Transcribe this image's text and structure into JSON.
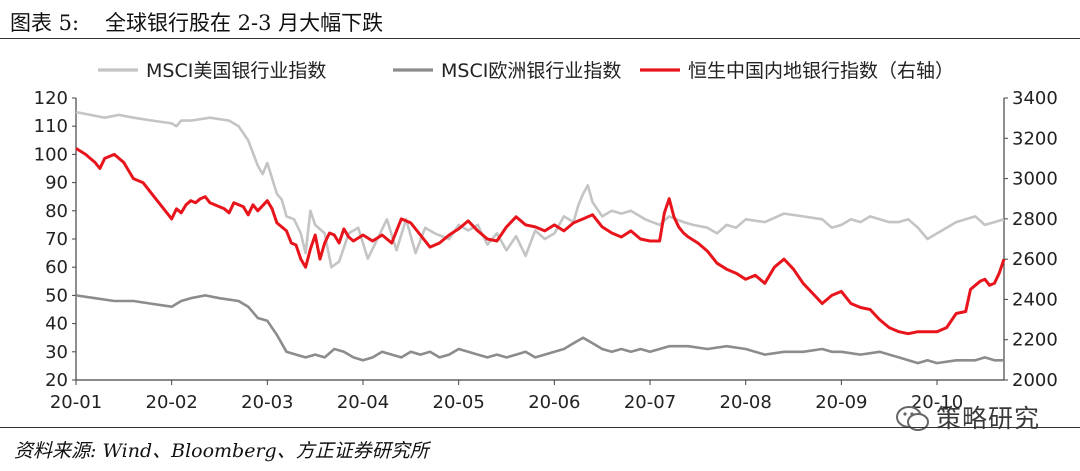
{
  "header": {
    "figure_label": "图表 5:",
    "title": "全球银行股在 2-3 月大幅下跌"
  },
  "source_note": "资料来源: Wind、Bloomberg、方正证券研究所",
  "watermark": "策略研究",
  "chart_data": {
    "type": "line",
    "x_tick_labels": [
      "20-01",
      "20-02",
      "20-03",
      "20-04",
      "20-05",
      "20-06",
      "20-07",
      "20-08",
      "20-09",
      "20-10"
    ],
    "x_range": [
      0,
      9.7
    ],
    "ylim_left": [
      20,
      120
    ],
    "yticks_left": [
      20,
      30,
      40,
      50,
      60,
      70,
      80,
      90,
      100,
      110,
      120
    ],
    "ylim_right": [
      2000,
      3400
    ],
    "yticks_right": [
      2000,
      2200,
      2400,
      2600,
      2800,
      3000,
      3200,
      3400
    ],
    "grid": false,
    "legend_position": "top",
    "series": [
      {
        "name": "MSCI美国银行业指数",
        "axis": "left",
        "color": "#c4c4c4",
        "x": [
          0,
          0.15,
          0.3,
          0.45,
          0.6,
          0.8,
          1.0,
          1.05,
          1.1,
          1.2,
          1.4,
          1.6,
          1.7,
          1.8,
          1.9,
          1.95,
          2.0,
          2.1,
          2.15,
          2.2,
          2.28,
          2.35,
          2.4,
          2.45,
          2.5,
          2.6,
          2.67,
          2.75,
          2.85,
          2.95,
          3.05,
          3.15,
          3.25,
          3.35,
          3.45,
          3.55,
          3.65,
          3.75,
          3.9,
          4.0,
          4.1,
          4.2,
          4.3,
          4.4,
          4.5,
          4.6,
          4.7,
          4.8,
          4.9,
          5.0,
          5.1,
          5.2,
          5.25,
          5.3,
          5.35,
          5.4,
          5.5,
          5.6,
          5.7,
          5.8,
          5.95,
          6.1,
          6.2,
          6.35,
          6.45,
          6.6,
          6.7,
          6.8,
          6.9,
          7.0,
          7.2,
          7.4,
          7.6,
          7.8,
          7.9,
          8.0,
          8.1,
          8.2,
          8.3,
          8.4,
          8.5,
          8.6,
          8.7,
          8.8,
          8.9,
          9.0,
          9.1,
          9.2,
          9.3,
          9.4,
          9.5,
          9.6,
          9.7
        ],
        "y": [
          115,
          114,
          113,
          114,
          113,
          112,
          111,
          110,
          112,
          112,
          113,
          112,
          110,
          105,
          96,
          93,
          97,
          86,
          84,
          78,
          77,
          72,
          65,
          80,
          75,
          72,
          60,
          62,
          72,
          74,
          63,
          70,
          77,
          66,
          77,
          65,
          74,
          72,
          70,
          75,
          73,
          75,
          68,
          72,
          66,
          71,
          64,
          73,
          70,
          72,
          78,
          76,
          82,
          86,
          89,
          83,
          78,
          80,
          79,
          80,
          77,
          75,
          78,
          76,
          75,
          74,
          72,
          75,
          74,
          77,
          76,
          79,
          78,
          77,
          74,
          75,
          77,
          76,
          78,
          77,
          76,
          76,
          77,
          74,
          70,
          72,
          74,
          76,
          77,
          78,
          75,
          76,
          77
        ]
      },
      {
        "name": "MSCI欧洲银行业指数",
        "axis": "left",
        "color": "#8c8c8c",
        "x": [
          0,
          0.2,
          0.4,
          0.6,
          0.8,
          1.0,
          1.1,
          1.2,
          1.35,
          1.5,
          1.7,
          1.8,
          1.85,
          1.9,
          2.0,
          2.1,
          2.2,
          2.3,
          2.4,
          2.5,
          2.6,
          2.7,
          2.8,
          2.9,
          3.0,
          3.1,
          3.2,
          3.3,
          3.4,
          3.5,
          3.6,
          3.7,
          3.8,
          3.9,
          4.0,
          4.1,
          4.2,
          4.3,
          4.4,
          4.5,
          4.6,
          4.7,
          4.8,
          4.9,
          5.0,
          5.1,
          5.2,
          5.3,
          5.4,
          5.5,
          5.6,
          5.7,
          5.8,
          5.9,
          6.0,
          6.2,
          6.4,
          6.6,
          6.8,
          7.0,
          7.2,
          7.4,
          7.6,
          7.8,
          7.9,
          8.0,
          8.2,
          8.4,
          8.6,
          8.8,
          8.9,
          9.0,
          9.2,
          9.4,
          9.5,
          9.6,
          9.7
        ],
        "y": [
          50,
          49,
          48,
          48,
          47,
          46,
          48,
          49,
          50,
          49,
          48,
          46,
          44,
          42,
          41,
          36,
          30,
          29,
          28,
          29,
          28,
          31,
          30,
          28,
          27,
          28,
          30,
          29,
          28,
          30,
          29,
          30,
          28,
          29,
          31,
          30,
          29,
          28,
          29,
          28,
          29,
          30,
          28,
          29,
          30,
          31,
          33,
          35,
          33,
          31,
          30,
          31,
          30,
          31,
          30,
          32,
          32,
          31,
          32,
          31,
          29,
          30,
          30,
          31,
          30,
          30,
          29,
          30,
          28,
          26,
          27,
          26,
          27,
          27,
          28,
          27,
          27
        ]
      },
      {
        "name": "恒生中国内地银行指数（右轴）",
        "axis": "right",
        "color": "#e8141c",
        "x": [
          0,
          0.1,
          0.2,
          0.25,
          0.3,
          0.35,
          0.4,
          0.5,
          0.6,
          0.65,
          0.7,
          0.8,
          0.9,
          1.0,
          1.05,
          1.1,
          1.15,
          1.2,
          1.25,
          1.3,
          1.35,
          1.4,
          1.5,
          1.55,
          1.6,
          1.65,
          1.7,
          1.75,
          1.8,
          1.85,
          1.9,
          2.0,
          2.05,
          2.1,
          2.15,
          2.2,
          2.25,
          2.3,
          2.35,
          2.4,
          2.45,
          2.5,
          2.55,
          2.6,
          2.65,
          2.7,
          2.75,
          2.8,
          2.85,
          2.9,
          3.0,
          3.1,
          3.2,
          3.3,
          3.4,
          3.5,
          3.6,
          3.7,
          3.8,
          3.9,
          4.0,
          4.1,
          4.2,
          4.3,
          4.4,
          4.5,
          4.6,
          4.7,
          4.8,
          4.9,
          5.0,
          5.1,
          5.2,
          5.3,
          5.4,
          5.5,
          5.6,
          5.7,
          5.8,
          5.9,
          6.0,
          6.1,
          6.15,
          6.2,
          6.25,
          6.3,
          6.35,
          6.4,
          6.5,
          6.6,
          6.7,
          6.8,
          6.9,
          7.0,
          7.1,
          7.2,
          7.3,
          7.4,
          7.5,
          7.6,
          7.7,
          7.8,
          7.9,
          8.0,
          8.1,
          8.2,
          8.3,
          8.4,
          8.5,
          8.6,
          8.7,
          8.8,
          8.9,
          9.0,
          9.1,
          9.2,
          9.3,
          9.35,
          9.4,
          9.45,
          9.5,
          9.55,
          9.6,
          9.65,
          9.7
        ],
        "y": [
          3150,
          3120,
          3080,
          3050,
          3100,
          3110,
          3120,
          3080,
          3000,
          2990,
          2980,
          2920,
          2860,
          2800,
          2850,
          2830,
          2870,
          2890,
          2880,
          2900,
          2910,
          2880,
          2860,
          2850,
          2830,
          2880,
          2870,
          2860,
          2820,
          2870,
          2840,
          2890,
          2850,
          2780,
          2760,
          2740,
          2680,
          2670,
          2600,
          2560,
          2650,
          2720,
          2600,
          2680,
          2730,
          2720,
          2680,
          2750,
          2710,
          2690,
          2720,
          2690,
          2720,
          2680,
          2800,
          2780,
          2720,
          2660,
          2680,
          2720,
          2750,
          2790,
          2740,
          2700,
          2690,
          2760,
          2810,
          2770,
          2760,
          2740,
          2770,
          2740,
          2780,
          2800,
          2820,
          2760,
          2730,
          2710,
          2740,
          2700,
          2690,
          2690,
          2830,
          2900,
          2810,
          2760,
          2730,
          2710,
          2680,
          2640,
          2580,
          2550,
          2530,
          2500,
          2520,
          2480,
          2560,
          2600,
          2550,
          2480,
          2430,
          2380,
          2420,
          2440,
          2380,
          2360,
          2350,
          2300,
          2260,
          2240,
          2230,
          2240,
          2240,
          2240,
          2260,
          2330,
          2340,
          2450,
          2470,
          2490,
          2500,
          2470,
          2480,
          2530,
          2600
        ]
      }
    ]
  }
}
